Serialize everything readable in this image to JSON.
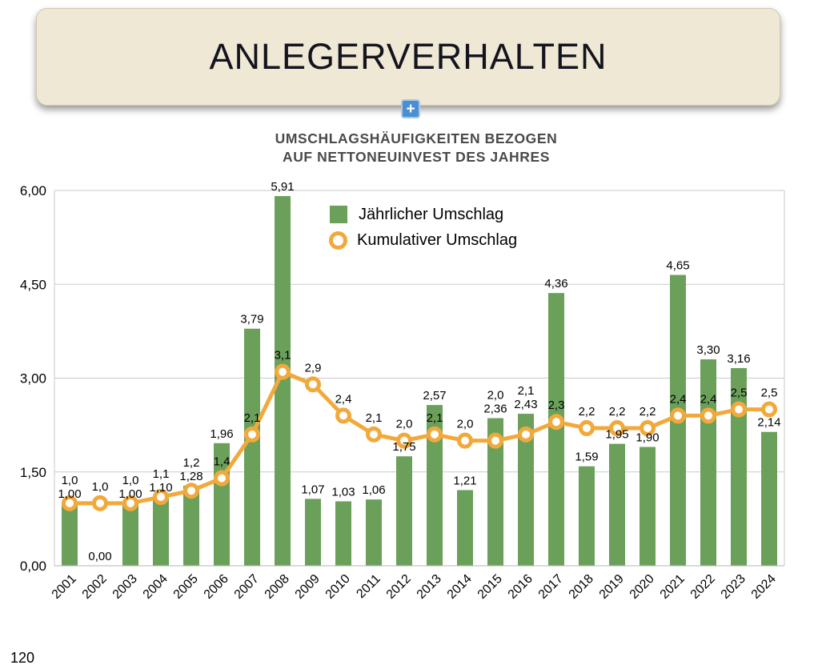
{
  "slide": {
    "title": "ANLEGERVERHALTEN",
    "plus_button_label": "+",
    "partial_bottom_label": "120"
  },
  "chart": {
    "title_line1": "UMSCHLAGSHÄUFIGKEITEN BEZOGEN",
    "title_line2": "AUF NETTONEUINVEST DES JAHRES",
    "legend": [
      {
        "label": "Jährlicher Umschlag",
        "type": "bar"
      },
      {
        "label": "Kumulativer Umschlag",
        "type": "line"
      }
    ]
  },
  "chart_data": {
    "type": "bar",
    "title": "UMSCHLAGSHÄUFIGKEITEN BEZOGEN AUF NETTONEUINVEST DES JAHRES",
    "categories": [
      "2001",
      "2002",
      "2003",
      "2004",
      "2005",
      "2006",
      "2007",
      "2008",
      "2009",
      "2010",
      "2011",
      "2012",
      "2013",
      "2014",
      "2015",
      "2016",
      "2017",
      "2018",
      "2019",
      "2020",
      "2021",
      "2022",
      "2023",
      "2024"
    ],
    "series": [
      {
        "name": "Jährlicher Umschlag",
        "type": "bar",
        "color": "#6ba05b",
        "values": [
          1.0,
          0.0,
          1.0,
          1.1,
          1.28,
          1.96,
          3.79,
          5.91,
          1.07,
          1.03,
          1.06,
          1.75,
          2.57,
          1.21,
          2.36,
          2.43,
          4.36,
          1.59,
          1.95,
          1.9,
          4.65,
          3.3,
          3.16,
          2.14
        ],
        "labels": [
          "1,00",
          "0,00",
          "1,00",
          "1,10",
          "1,28",
          "1,96",
          "3,79",
          "5,91",
          "1,07",
          "1,03",
          "1,06",
          "1,75",
          "2,57",
          "1,21",
          "2,36",
          "2,43",
          "4,36",
          "1,59",
          "1,95",
          "1,90",
          "4,65",
          "3,30",
          "3,16",
          "2,14"
        ]
      },
      {
        "name": "Kumulativer Umschlag",
        "type": "line",
        "color": "#f2a93b",
        "marker_fill": "#ffffff",
        "values": [
          1.0,
          1.0,
          1.0,
          1.1,
          1.2,
          1.4,
          2.1,
          3.1,
          2.9,
          2.4,
          2.1,
          2.0,
          2.1,
          2.0,
          2.0,
          2.1,
          2.3,
          2.2,
          2.2,
          2.2,
          2.4,
          2.4,
          2.5,
          2.5
        ],
        "labels": [
          "1,0",
          "1,0",
          "1,0",
          "1,1",
          "1,2",
          "1,4",
          "2,1",
          "3,1",
          "2,9",
          "2,4",
          "2,1",
          "2,0",
          "2,1",
          "2,0",
          "2,0",
          "2,1",
          "2,3",
          "2,2",
          "2,2",
          "2,2",
          "2,4",
          "2,4",
          "2,5",
          "2,5"
        ]
      }
    ],
    "ylim": [
      0,
      6
    ],
    "yticks": {
      "values": [
        0,
        1.5,
        3.0,
        4.5,
        6.0
      ],
      "labels": [
        "0,00",
        "1,50",
        "3,00",
        "4,50",
        "6,00"
      ]
    },
    "grid": true,
    "legend_position": "top-center",
    "xlabel": "",
    "ylabel": ""
  }
}
